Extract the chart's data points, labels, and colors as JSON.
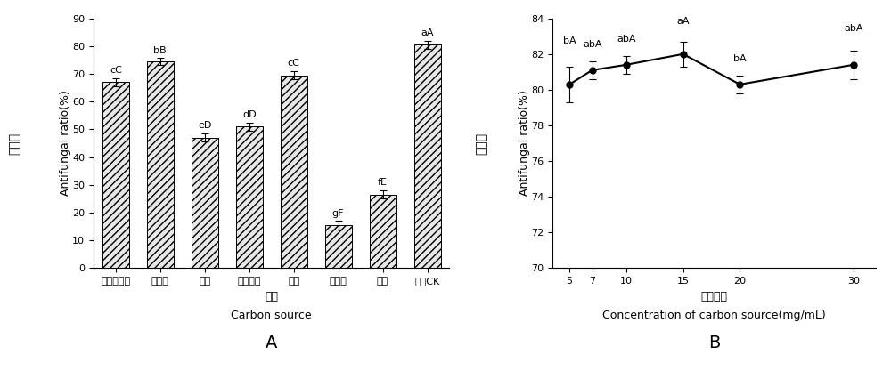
{
  "chart_A": {
    "categories": [
      "可溶性淥粉",
      "麦芽糖",
      "木糖",
      "玉米淥粉",
      "蔗糖",
      "纤维素",
      "乳糖",
      "对照CK"
    ],
    "values": [
      67.0,
      74.5,
      47.0,
      51.0,
      69.5,
      15.5,
      26.5,
      80.5
    ],
    "errors": [
      1.5,
      1.2,
      1.5,
      1.5,
      1.5,
      1.5,
      1.5,
      1.5
    ],
    "labels": [
      "cC",
      "bB",
      "eD",
      "dD",
      "cC",
      "gF",
      "fE",
      "aA"
    ],
    "ylabel_cn": "抑菌率",
    "ylabel_en": "Antifungal ratio(%)",
    "xlabel_cn": "碳源",
    "xlabel_en": "Carbon source",
    "ylim": [
      0,
      90
    ],
    "yticks": [
      0,
      10,
      20,
      30,
      40,
      50,
      60,
      70,
      80,
      90
    ],
    "panel_label": "A"
  },
  "chart_B": {
    "x": [
      5,
      7,
      10,
      15,
      20,
      30
    ],
    "values": [
      80.3,
      81.1,
      81.4,
      82.0,
      80.3,
      81.4
    ],
    "errors": [
      1.0,
      0.5,
      0.5,
      0.7,
      0.5,
      0.8
    ],
    "labels": [
      "bA",
      "abA",
      "abA",
      "aA",
      "bA",
      "abA"
    ],
    "ylabel_cn": "抑菌率",
    "ylabel_en": "Antifungal ratio(%)",
    "xlabel_cn": "碳源浓度",
    "xlabel_en": "Concentration of carbon source(mg/mL)",
    "ylim": [
      70,
      84
    ],
    "yticks": [
      70,
      72,
      74,
      76,
      78,
      80,
      82,
      84
    ],
    "panel_label": "B"
  },
  "hatch_pattern": "////",
  "bar_color": "#e8e8e8",
  "bar_edge_color": "#000000",
  "line_color": "#000000",
  "marker_style": "o",
  "marker_size": 5,
  "marker_fill": "#000000",
  "background_color": "#ffffff",
  "font_color": "#000000",
  "label_fontsize": 8,
  "tick_fontsize": 8,
  "axis_label_fontsize": 9,
  "panel_label_fontsize": 14
}
